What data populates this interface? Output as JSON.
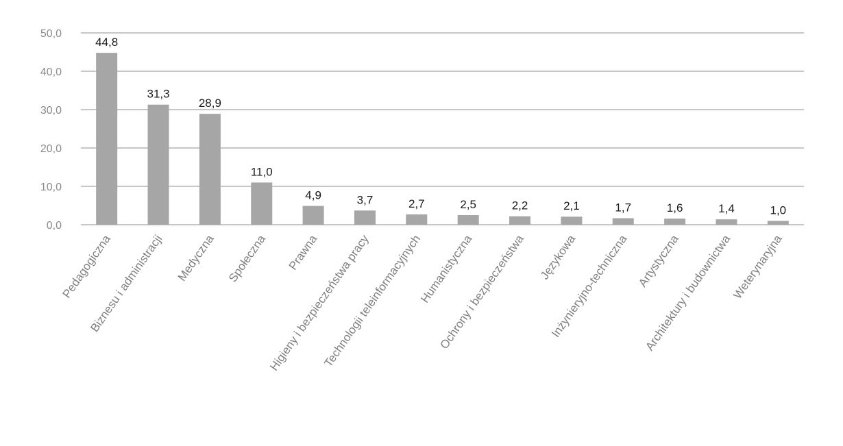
{
  "chart_data": {
    "type": "bar",
    "title": "",
    "xlabel": "",
    "ylabel": "",
    "ylim": [
      0,
      50
    ],
    "yticks": [
      "0,0",
      "10,0",
      "20,0",
      "30,0",
      "40,0",
      "50,0"
    ],
    "grid": true,
    "legend": "none",
    "bar_color": "#a6a6a6",
    "categories": [
      "Pedagogiczna",
      "Biznesu i administracji",
      "Medyczna",
      "Społeczna",
      "Prawna",
      "Higieny i bezpieczeństwa pracy",
      "Technologii teleinformacyjnych",
      "Humanistyczna",
      "Ochrony i bezpieczeństwa",
      "Językowa",
      "Inżynieryjno-techniczna",
      "Artystyczna",
      "Architektury i budownictwa",
      "Weterynaryjna"
    ],
    "values": [
      44.8,
      31.3,
      28.9,
      11.0,
      4.9,
      3.7,
      2.7,
      2.5,
      2.2,
      2.1,
      1.7,
      1.6,
      1.4,
      1.0
    ],
    "value_labels": [
      "44,8",
      "31,3",
      "28,9",
      "11,0",
      "4,9",
      "3,7",
      "2,7",
      "2,5",
      "2,2",
      "2,1",
      "1,7",
      "1,6",
      "1,4",
      "1,0"
    ]
  }
}
